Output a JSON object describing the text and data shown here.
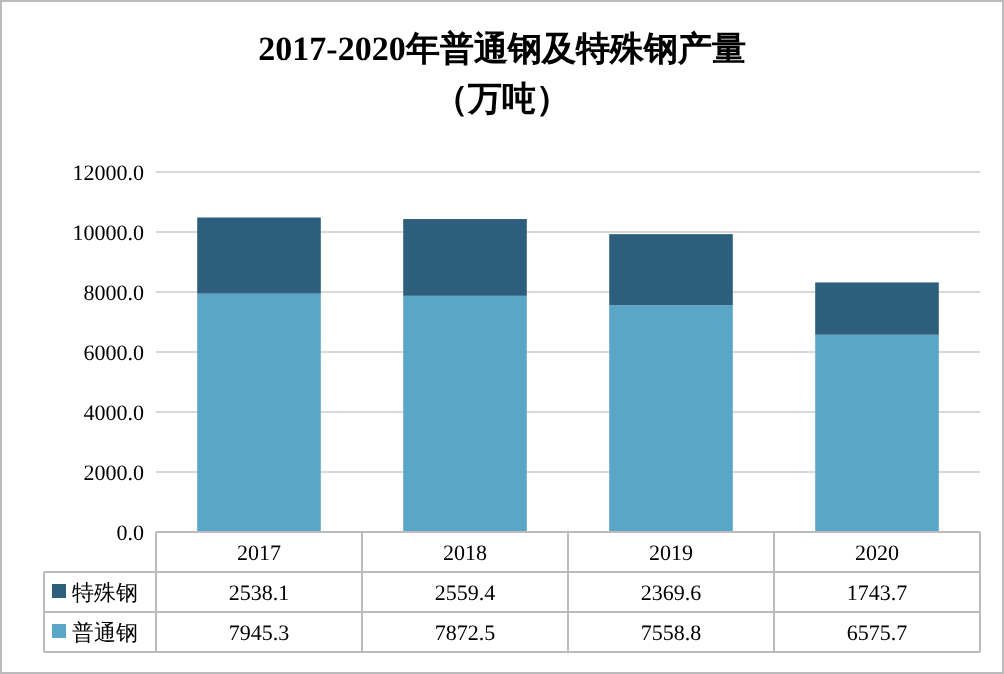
{
  "chart_data": {
    "type": "bar",
    "title": "2017-2020年普通钢及特殊钢产量",
    "subtitle": "（万吨）",
    "categories": [
      "2017",
      "2018",
      "2019",
      "2020"
    ],
    "series": [
      {
        "name": "普通钢",
        "color": "#5aa6c9",
        "values": [
          7945.3,
          7872.5,
          7558.8,
          6575.7
        ]
      },
      {
        "name": "特殊钢",
        "color": "#2d5f7d",
        "values": [
          2538.1,
          2559.4,
          2369.6,
          1743.7
        ]
      }
    ],
    "stacked": true,
    "data_labels": true,
    "grid": "y",
    "legend": "bottom",
    "ylim": [
      0,
      12000
    ],
    "yticks": [
      {
        "value": 0,
        "label": "0.0"
      },
      {
        "value": 2000,
        "label": "2000.0"
      },
      {
        "value": 4000,
        "label": "4000.0"
      },
      {
        "value": 6000,
        "label": "6000.0"
      },
      {
        "value": 8000,
        "label": "8000.0"
      },
      {
        "value": 10000,
        "label": "10000.0"
      },
      {
        "value": 12000,
        "label": "12000.0"
      }
    ]
  }
}
